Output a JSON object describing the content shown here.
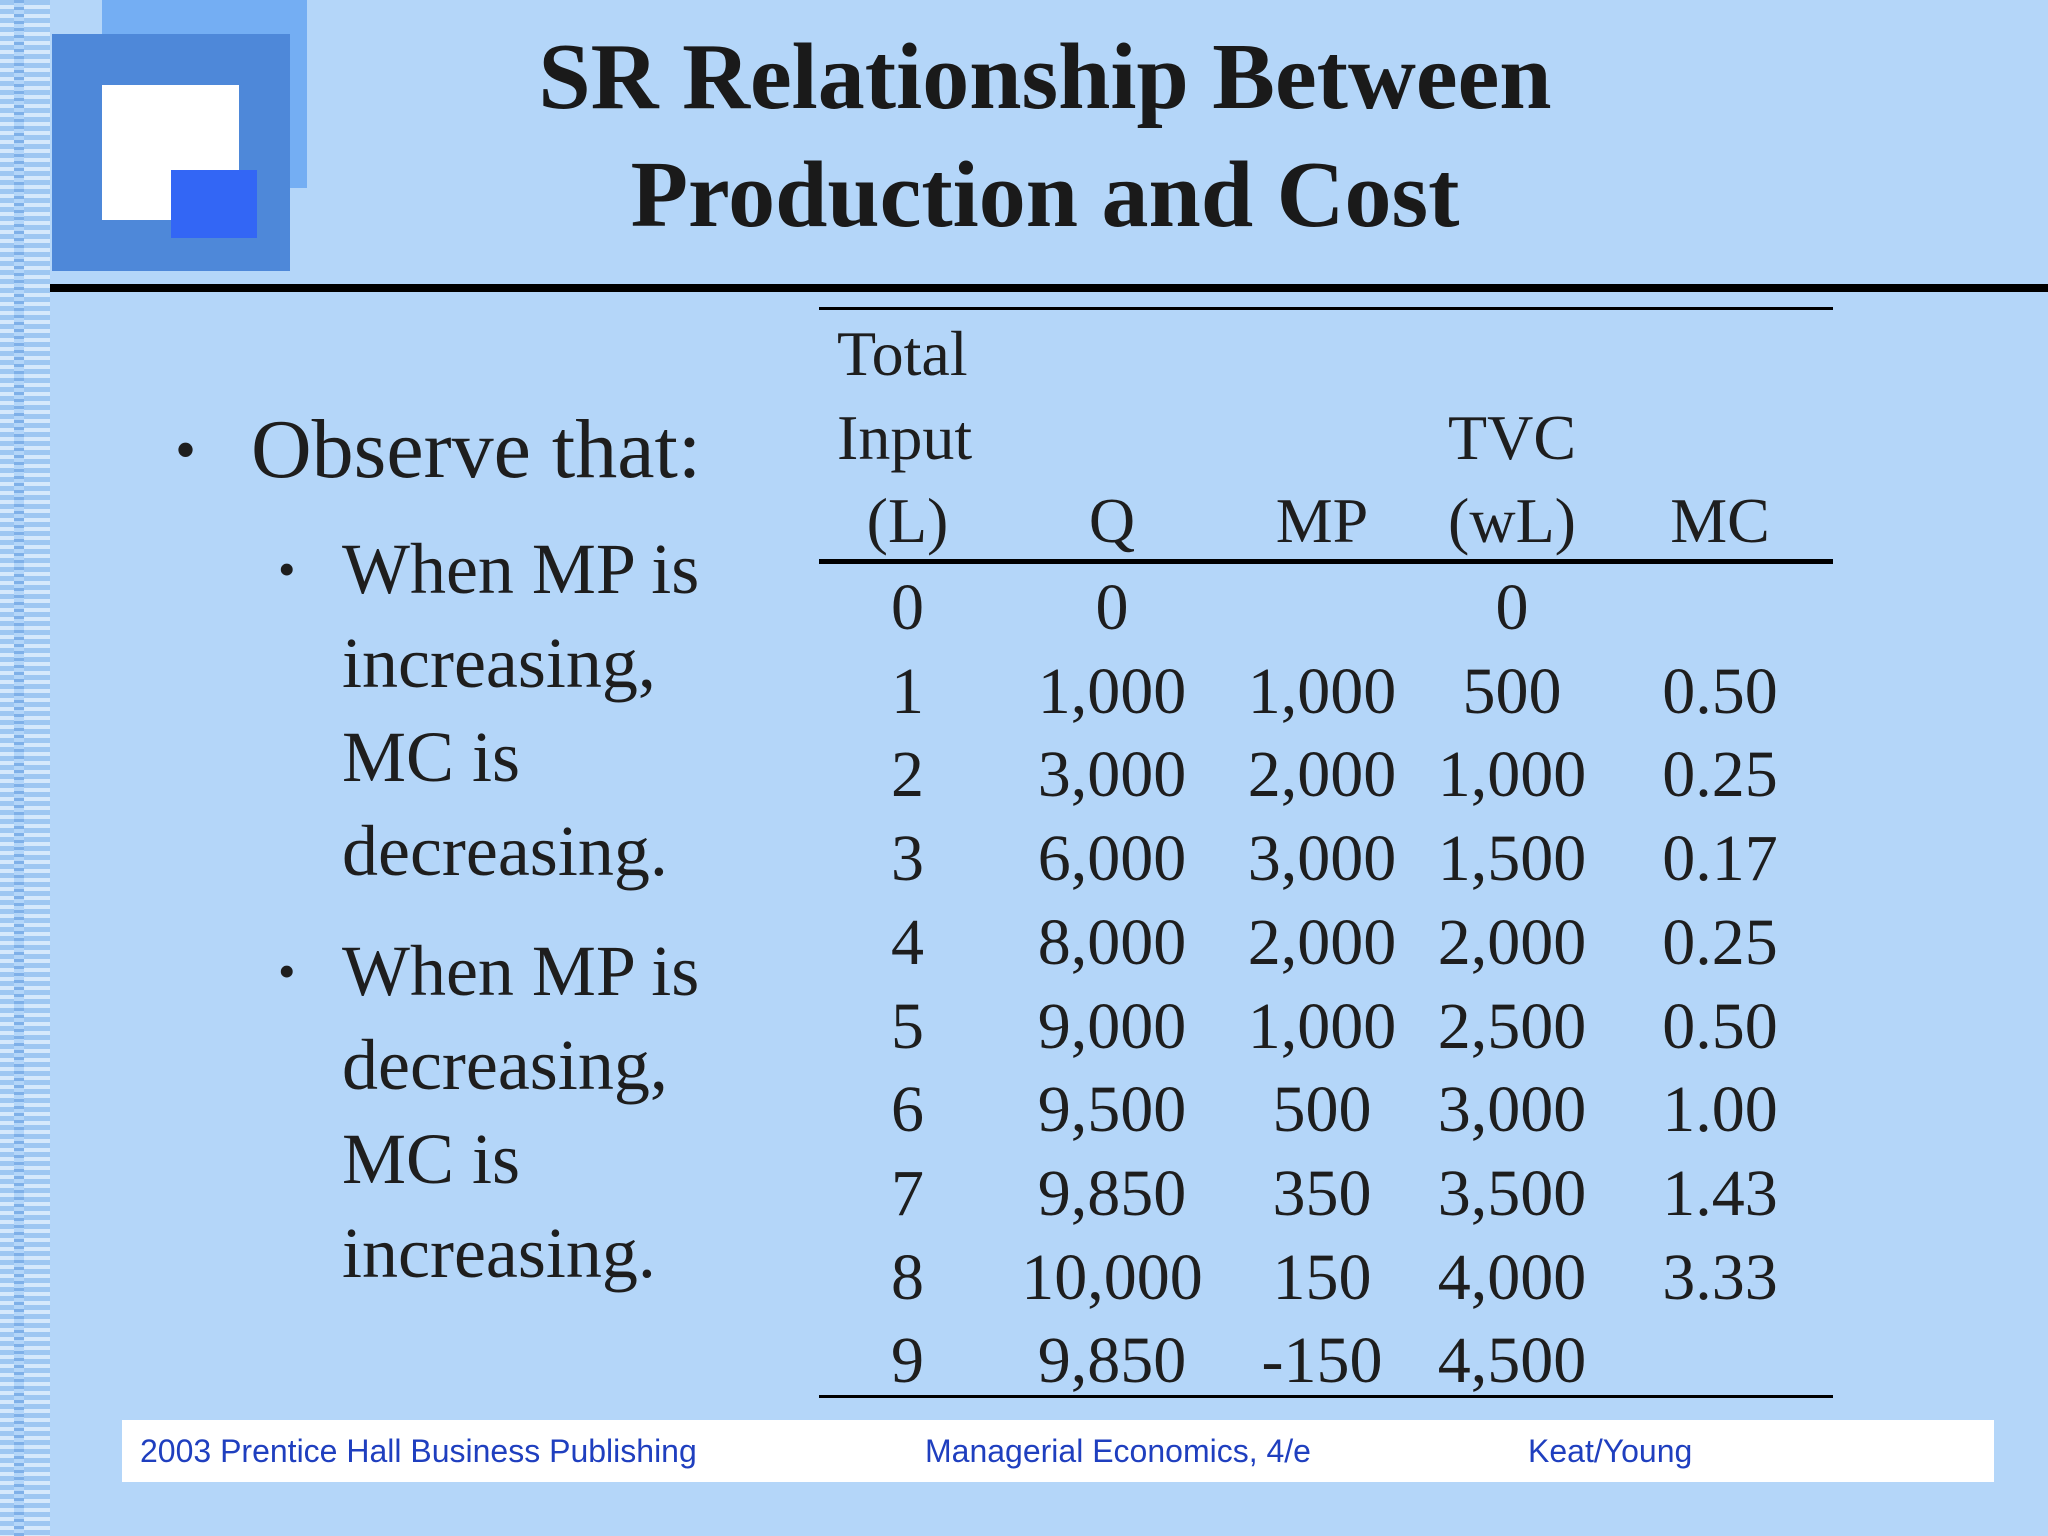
{
  "title": {
    "line1": "SR Relationship Between",
    "line2": "Production and Cost"
  },
  "bullets": {
    "main": "Observe that:",
    "sub": [
      [
        "When MP is",
        "increasing,",
        "MC is",
        "decreasing."
      ],
      [
        "When MP is",
        "decreasing,",
        "MC is",
        "increasing."
      ]
    ]
  },
  "table": {
    "headers": {
      "L": [
        "Total",
        "Input",
        "(L)"
      ],
      "Q": "Q",
      "MP": "MP",
      "TVC": [
        "TVC",
        "(wL)"
      ],
      "MC": "MC"
    },
    "rows": [
      [
        "0",
        "0",
        "",
        "0",
        ""
      ],
      [
        "1",
        "1,000",
        "1,000",
        "500",
        "0.50"
      ],
      [
        "2",
        "3,000",
        "2,000",
        "1,000",
        "0.25"
      ],
      [
        "3",
        "6,000",
        "3,000",
        "1,500",
        "0.17"
      ],
      [
        "4",
        "8,000",
        "2,000",
        "2,000",
        "0.25"
      ],
      [
        "5",
        "9,000",
        "1,000",
        "2,500",
        "0.50"
      ],
      [
        "6",
        "9,500",
        "500",
        "3,000",
        "1.00"
      ],
      [
        "7",
        "9,850",
        "350",
        "3,500",
        "1.43"
      ],
      [
        "8",
        "10,000",
        "150",
        "4,000",
        "3.33"
      ],
      [
        "9",
        "9,850",
        "-150",
        "4,500",
        ""
      ]
    ]
  },
  "footer": {
    "left": "2003 Prentice Hall Business Publishing",
    "center": "Managerial Economics, 4/e",
    "right": "Keat/Young"
  }
}
